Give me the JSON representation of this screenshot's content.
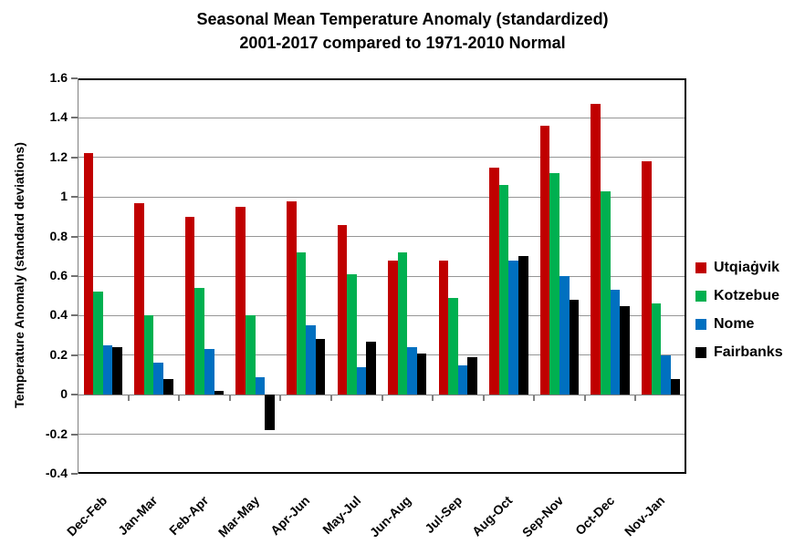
{
  "chart_data": {
    "type": "bar",
    "title_line1": "Seasonal Mean Temperature Anomaly (standardized)",
    "title_line2": "2001-2017 compared to 1971-2010 Normal",
    "ylabel": "Temperature Anomaly (standard deviations)",
    "xlabel": "",
    "ylim": [
      -0.4,
      1.6
    ],
    "y_tick_step": 0.2,
    "y_tick_labels": [
      "1.6",
      "1.4",
      "1.2",
      "1",
      "0.8",
      "0.6",
      "0.4",
      "0.2",
      "0",
      "-0.2",
      "-0.4"
    ],
    "grid": true,
    "legend_position": "right",
    "categories": [
      "Dec-Feb",
      "Jan-Mar",
      "Feb-Apr",
      "Mar-May",
      "Apr-Jun",
      "May-Jul",
      "Jun-Aug",
      "Jul-Sep",
      "Aug-Oct",
      "Sep-Nov",
      "Oct-Dec",
      "Nov-Jan"
    ],
    "series": [
      {
        "name": "Utqiaġvik",
        "color": "#C00000",
        "values": [
          1.22,
          0.97,
          0.9,
          0.95,
          0.98,
          0.86,
          0.68,
          0.68,
          1.15,
          1.36,
          1.47,
          1.18
        ]
      },
      {
        "name": "Kotzebue",
        "color": "#00B050",
        "values": [
          0.52,
          0.4,
          0.54,
          0.4,
          0.72,
          0.61,
          0.72,
          0.49,
          1.06,
          1.12,
          1.03,
          0.46
        ]
      },
      {
        "name": "Nome",
        "color": "#0070C0",
        "values": [
          0.25,
          0.16,
          0.23,
          0.09,
          0.35,
          0.14,
          0.24,
          0.15,
          0.68,
          0.6,
          0.53,
          0.2
        ]
      },
      {
        "name": "Fairbanks",
        "color": "#000000",
        "values": [
          0.24,
          0.08,
          0.02,
          -0.18,
          0.28,
          0.27,
          0.21,
          0.19,
          0.7,
          0.48,
          0.45,
          0.08
        ]
      }
    ],
    "colors": {
      "gridline": "#969696",
      "axis": "#808080",
      "frame": "#000000",
      "background": "#FFFFFF"
    }
  }
}
